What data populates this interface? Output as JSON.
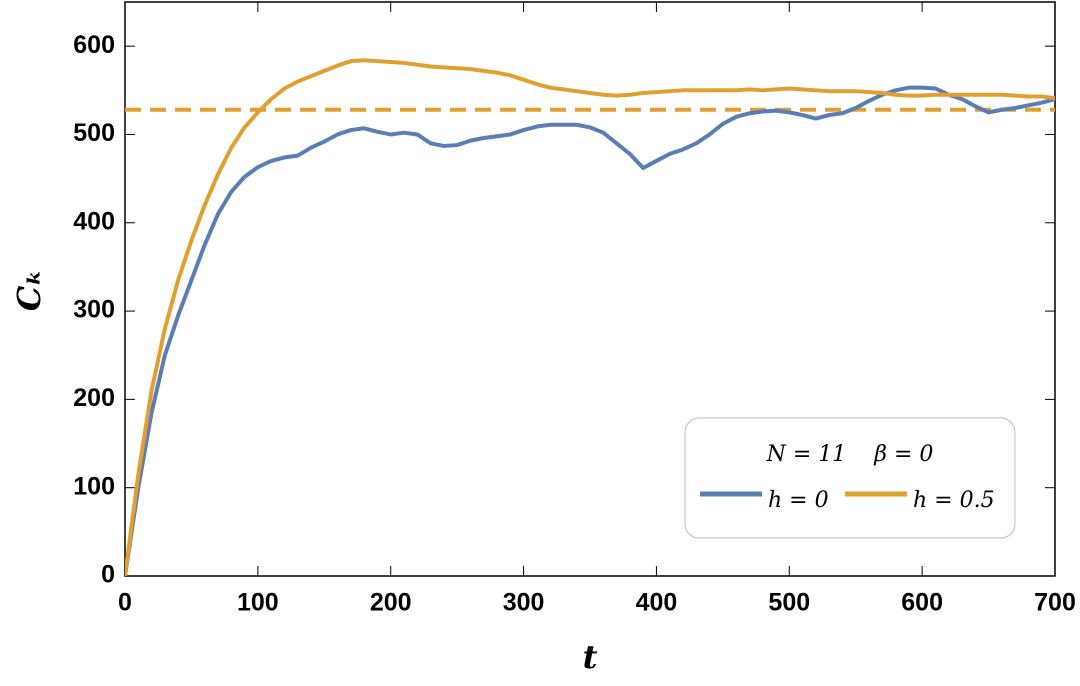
{
  "chart_data": {
    "type": "line",
    "x_label": "t",
    "y_label": "Cₖ",
    "x": [
      0,
      10,
      20,
      30,
      40,
      50,
      60,
      70,
      80,
      90,
      100,
      110,
      120,
      130,
      140,
      150,
      160,
      170,
      180,
      190,
      200,
      210,
      220,
      230,
      240,
      250,
      260,
      270,
      280,
      290,
      300,
      310,
      320,
      330,
      340,
      350,
      360,
      370,
      380,
      390,
      400,
      410,
      420,
      430,
      440,
      450,
      460,
      470,
      480,
      490,
      500,
      510,
      520,
      530,
      540,
      550,
      560,
      570,
      580,
      590,
      600,
      610,
      620,
      630,
      640,
      650,
      660,
      670,
      680,
      690,
      700
    ],
    "series": [
      {
        "name": "h = 0",
        "color": "#5b7db5",
        "values": [
          0,
          100,
          185,
          250,
          295,
          335,
          375,
          410,
          435,
          452,
          463,
          470,
          474,
          476,
          485,
          492,
          500,
          505,
          507,
          503,
          500,
          502,
          500,
          490,
          487,
          488,
          493,
          496,
          498,
          500,
          505,
          509,
          511,
          511,
          511,
          508,
          502,
          490,
          478,
          462,
          470,
          478,
          483,
          490,
          500,
          512,
          520,
          524,
          526,
          527,
          525,
          522,
          518,
          522,
          524,
          530,
          538,
          545,
          550,
          553,
          553,
          552,
          545,
          540,
          532,
          525,
          528,
          530,
          533,
          536,
          540
        ]
      },
      {
        "name": "h = 0.5",
        "color": "#e0a030",
        "values": [
          0,
          115,
          210,
          280,
          335,
          380,
          420,
          455,
          485,
          508,
          525,
          540,
          552,
          560,
          566,
          572,
          578,
          583,
          584,
          583,
          582,
          581,
          579,
          577,
          576,
          575,
          574,
          572,
          570,
          567,
          562,
          557,
          553,
          551,
          549,
          547,
          545,
          544,
          545,
          547,
          548,
          549,
          550,
          550,
          550,
          550,
          550,
          551,
          550,
          551,
          552,
          551,
          550,
          549,
          549,
          549,
          548,
          547,
          545,
          544,
          544,
          545,
          545,
          545,
          545,
          545,
          545,
          544,
          543,
          543,
          541
        ]
      }
    ],
    "reference_line": {
      "value": 528,
      "color": "#e0a030"
    },
    "legend_title": "N = 11    β = 0",
    "xlim": [
      0,
      700
    ],
    "ylim": [
      0,
      650
    ],
    "xticks": [
      0,
      100,
      200,
      300,
      400,
      500,
      600,
      700
    ],
    "yticks": [
      0,
      100,
      200,
      300,
      400,
      500,
      600
    ]
  }
}
